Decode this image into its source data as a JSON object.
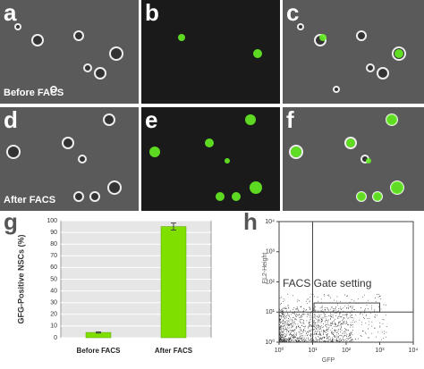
{
  "panels": [
    {
      "label": "a",
      "caption": "Before FACS"
    },
    {
      "label": "b"
    },
    {
      "label": "c"
    },
    {
      "label": "d",
      "caption": "After FACS"
    },
    {
      "label": "e"
    },
    {
      "label": "f"
    },
    {
      "label": "g"
    },
    {
      "label": "h"
    }
  ],
  "chart_data": [
    {
      "type": "bar",
      "categories": [
        "Before FACS",
        "After FACS"
      ],
      "values": [
        4.5,
        95
      ],
      "errors": [
        0.5,
        3
      ],
      "color": "#7fe000",
      "ylabel": "GFG-Positive NSCs (%)",
      "ylim": [
        0,
        100
      ],
      "yticks": [
        0,
        10,
        20,
        30,
        40,
        50,
        60,
        70,
        80,
        90,
        100
      ],
      "grid": true
    },
    {
      "type": "flow",
      "xlabel": "GFP",
      "ylabel": "FL2-Height",
      "log_scale": true,
      "xlim": [
        1,
        10000
      ],
      "ylim": [
        1,
        10000
      ],
      "xticks": [
        {
          "value": 1,
          "label": "10⁰"
        },
        {
          "value": 10,
          "label": "10¹"
        },
        {
          "value": 100,
          "label": "10²"
        },
        {
          "value": 1000,
          "label": "10³"
        },
        {
          "value": 10000,
          "label": "10⁴"
        }
      ],
      "yticks": [
        {
          "value": 1,
          "label": "10⁰"
        },
        {
          "value": 10,
          "label": "10¹"
        },
        {
          "value": 100,
          "label": "10²"
        },
        {
          "value": 1000,
          "label": "10³"
        },
        {
          "value": 10000,
          "label": "10⁴"
        }
      ],
      "annotation": "FACS Gate setting"
    }
  ]
}
